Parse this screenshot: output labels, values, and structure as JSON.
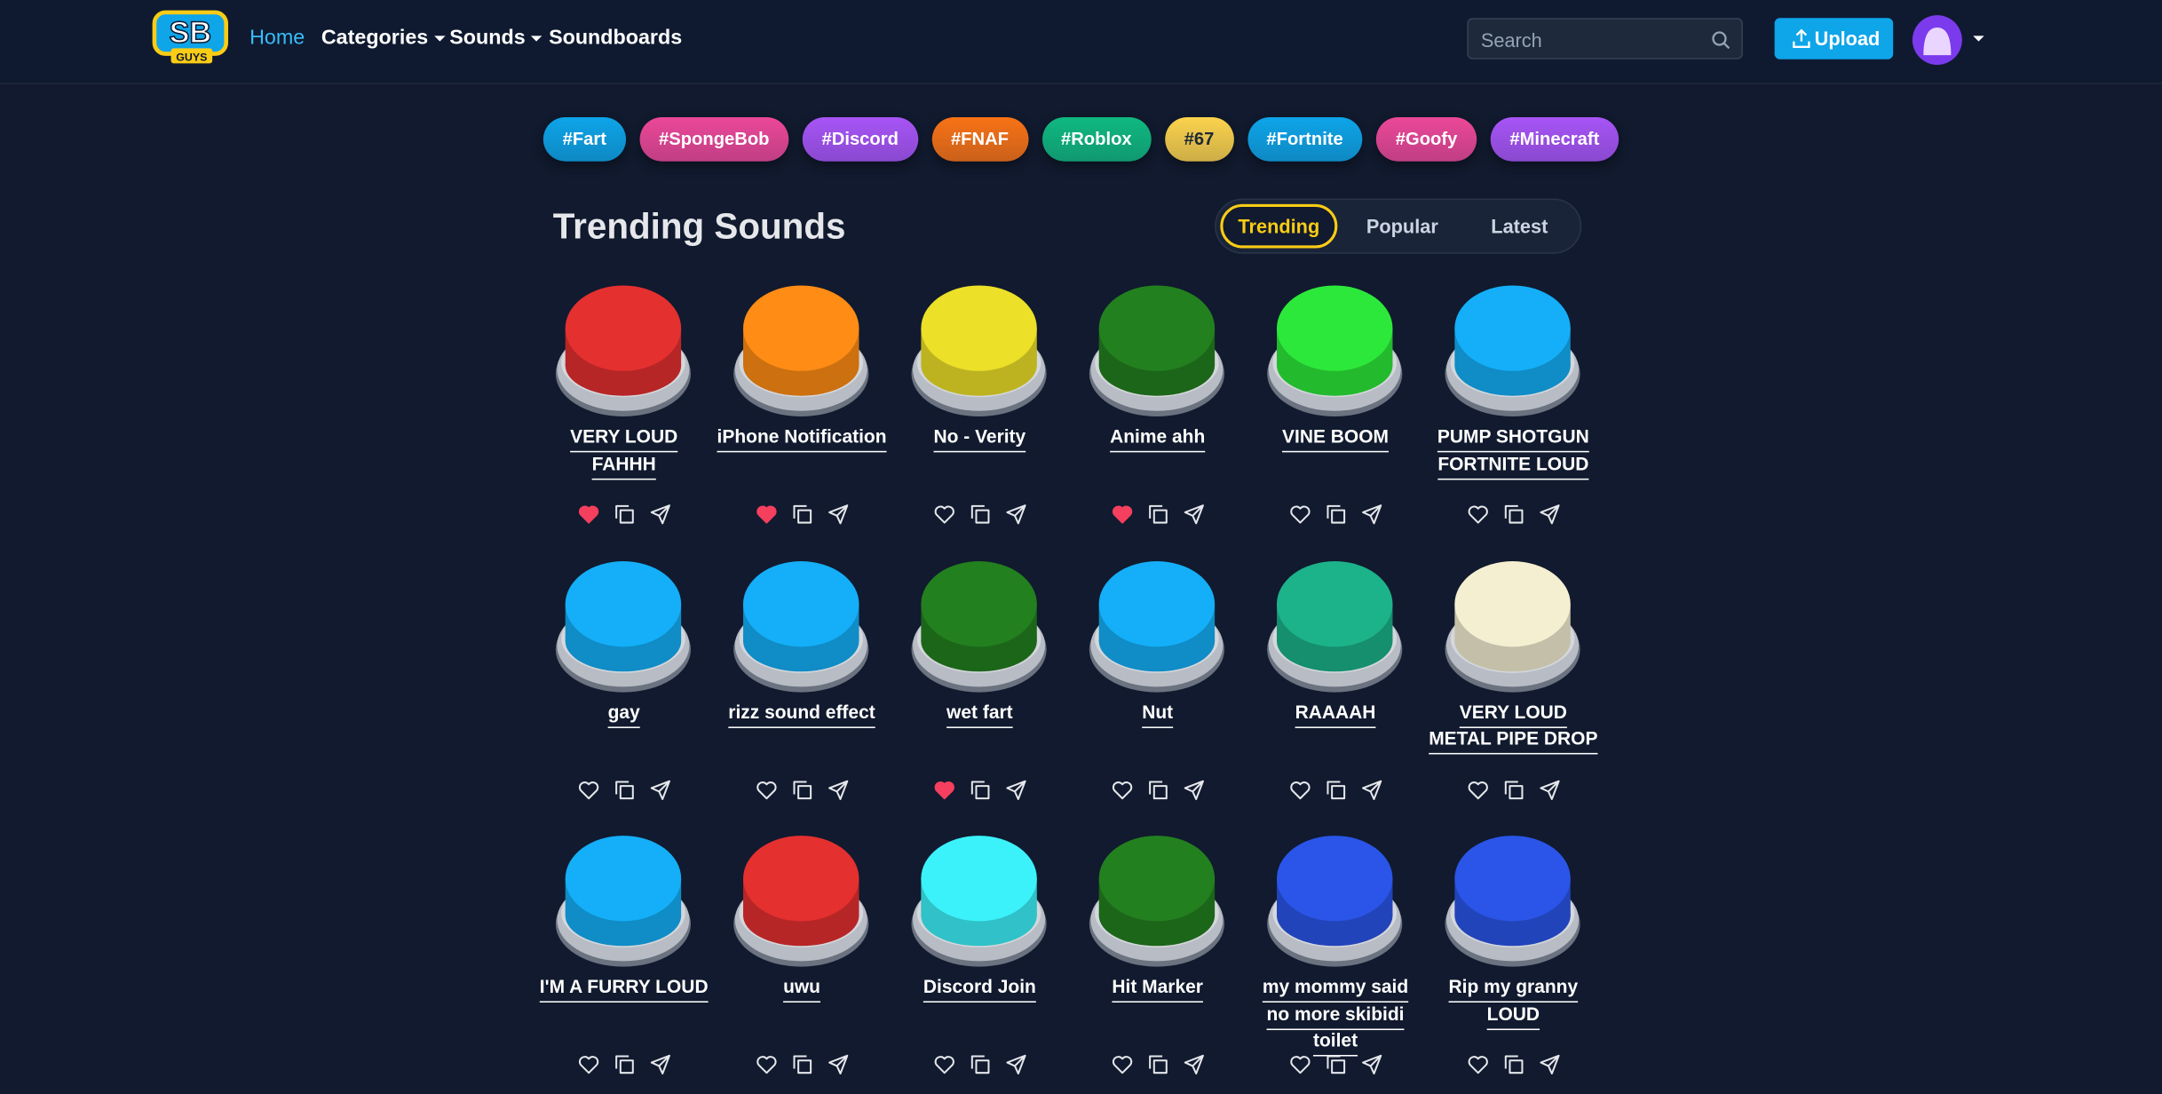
{
  "header": {
    "logo": {
      "main": "SB",
      "sub": "GUYS"
    },
    "nav": [
      {
        "label": "Home",
        "active": true,
        "dropdown": false
      },
      {
        "label": "Categories",
        "active": false,
        "dropdown": true
      },
      {
        "label": "Sounds",
        "active": false,
        "dropdown": true
      },
      {
        "label": "Soundboards",
        "active": false,
        "dropdown": false
      }
    ],
    "search_placeholder": "Search",
    "upload": "Upload"
  },
  "tags": [
    {
      "label": "#Fart",
      "color": "#0ea5e9"
    },
    {
      "label": "#SpongeBob",
      "color": "#ec4899"
    },
    {
      "label": "#Discord",
      "color": "#a855f7"
    },
    {
      "label": "#FNAF",
      "color": "#f97316"
    },
    {
      "label": "#Roblox",
      "color": "#10b981"
    },
    {
      "label": "#67",
      "color": "#fcd34d",
      "dark_text": true
    },
    {
      "label": "#Fortnite",
      "color": "#0ea5e9"
    },
    {
      "label": "#Goofy",
      "color": "#ec4899"
    },
    {
      "label": "#Minecraft",
      "color": "#a855f7"
    }
  ],
  "section": {
    "title": "Trending Sounds",
    "tabs": [
      {
        "label": "Trending",
        "active": true
      },
      {
        "label": "Popular",
        "active": false
      },
      {
        "label": "Latest",
        "active": false
      }
    ]
  },
  "sounds": [
    {
      "name": "VERY LOUD FAHHH",
      "color": "#e53030",
      "liked": true
    },
    {
      "name": "iPhone Notification",
      "color": "#ff8c14",
      "liked": true
    },
    {
      "name": "No - Verity",
      "color": "#ece028",
      "liked": false
    },
    {
      "name": "Anime ahh",
      "color": "#23801f",
      "liked": true
    },
    {
      "name": "VINE BOOM",
      "color": "#2ce83a",
      "liked": false
    },
    {
      "name": "PUMP SHOTGUN FORTNITE LOUD",
      "color": "#14aff8",
      "liked": false
    },
    {
      "name": "gay",
      "color": "#14aff8",
      "liked": false
    },
    {
      "name": "rizz sound effect",
      "color": "#14aff8",
      "liked": false
    },
    {
      "name": "wet fart",
      "color": "#23801f",
      "liked": true
    },
    {
      "name": "Nut",
      "color": "#14aff8",
      "liked": false
    },
    {
      "name": "RAAAAH",
      "color": "#1cb38a",
      "liked": false
    },
    {
      "name": "VERY LOUD METAL PIPE DROP",
      "color": "#f5efd2",
      "liked": false
    },
    {
      "name": "I'M A FURRY LOUD",
      "color": "#14aff8",
      "liked": false
    },
    {
      "name": "uwu",
      "color": "#e53030",
      "liked": false
    },
    {
      "name": "Discord Join",
      "color": "#3cf2fa",
      "liked": false
    },
    {
      "name": "Hit Marker",
      "color": "#23801f",
      "liked": false
    },
    {
      "name": "my mommy said no more skibidi toilet",
      "color": "#2a55e8",
      "liked": false
    },
    {
      "name": "Rip my granny LOUD",
      "color": "#2a55e8",
      "liked": false
    }
  ]
}
